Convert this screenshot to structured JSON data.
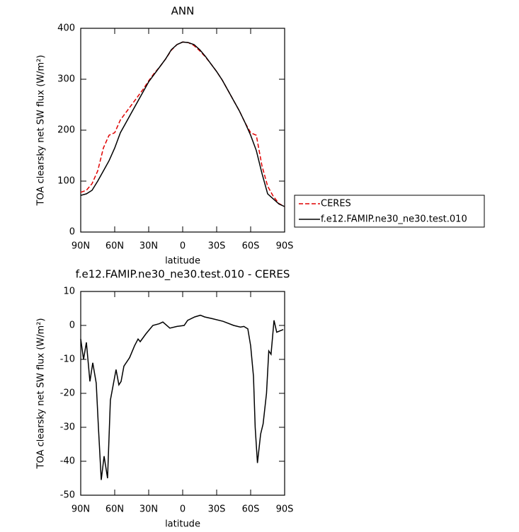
{
  "chart_data": [
    {
      "type": "line",
      "title": "ANN",
      "xlabel": "latitude",
      "ylabel": "TOA clearsky net SW flux (W/m²)",
      "x": [
        90,
        85,
        80,
        75,
        70,
        65,
        60,
        55,
        50,
        45,
        40,
        35,
        30,
        25,
        20,
        15,
        10,
        5,
        0,
        -5,
        -10,
        -15,
        -20,
        -25,
        -30,
        -35,
        -40,
        -45,
        -50,
        -55,
        -60,
        -65,
        -70,
        -75,
        -80,
        -85,
        -90
      ],
      "series": [
        {
          "name": "CERES",
          "color": "#e00000",
          "dash": true,
          "values": [
            78,
            82,
            95,
            120,
            165,
            190,
            195,
            220,
            235,
            250,
            265,
            280,
            297,
            312,
            325,
            340,
            357,
            368,
            373,
            372,
            366,
            356,
            344,
            330,
            315,
            298,
            278,
            258,
            238,
            215,
            195,
            190,
            130,
            90,
            70,
            56,
            50
          ]
        },
        {
          "name": "f.e12.FAMIP.ne30_ne30.test.010",
          "color": "#000000",
          "dash": false,
          "values": [
            72,
            75,
            82,
            100,
            120,
            140,
            165,
            195,
            215,
            235,
            255,
            275,
            295,
            310,
            325,
            340,
            358,
            368,
            373,
            372,
            368,
            358,
            345,
            330,
            315,
            298,
            278,
            258,
            238,
            215,
            190,
            160,
            115,
            75,
            65,
            55,
            50
          ]
        }
      ],
      "xlim": [
        90,
        -90
      ],
      "xticks": [
        {
          "value": 90,
          "label": "90N"
        },
        {
          "value": 60,
          "label": "60N"
        },
        {
          "value": 30,
          "label": "30N"
        },
        0,
        {
          "value": -30,
          "label": "30S"
        },
        {
          "value": -60,
          "label": "60S"
        },
        {
          "value": -90,
          "label": "90S"
        }
      ],
      "ylim": [
        0,
        400
      ],
      "yticks": [
        0,
        100,
        200,
        300,
        400
      ]
    },
    {
      "type": "line",
      "title": "f.e12.FAMIP.ne30_ne30.test.010 - CERES",
      "xlabel": "latitude",
      "ylabel": "TOA clearsky net SW flux (W/m²)",
      "x": [
        90,
        87.5,
        85,
        81.9,
        79.4,
        76.3,
        74.4,
        71.9,
        69.4,
        66.3,
        63.8,
        58.8,
        56.3,
        54.4,
        51.9,
        46.9,
        42.5,
        39.4,
        37.5,
        32.5,
        26.3,
        20.6,
        17.5,
        11.3,
        5,
        -1.3,
        -4.4,
        -10.6,
        -15.6,
        -19.4,
        -26,
        -35.6,
        -45,
        -51,
        -54,
        -57.5,
        -60,
        -62.5,
        -64,
        -66,
        -68.8,
        -71,
        -74,
        -76,
        -78,
        -80.6,
        -83,
        -88.8
      ],
      "series": [
        {
          "color": "#000000",
          "dash": false,
          "values": [
            -4,
            -10,
            -5,
            -16.5,
            -11,
            -17,
            -30,
            -45.5,
            -38.5,
            -45,
            -22,
            -13,
            -17.5,
            -16.5,
            -12,
            -9.5,
            -6,
            -4,
            -4.8,
            -2.5,
            0,
            0.5,
            1,
            -0.8,
            -0.3,
            0,
            1.5,
            2.5,
            3,
            2.5,
            2,
            1.2,
            0,
            -0.5,
            -0.3,
            -1,
            -6,
            -15,
            -30,
            -40.5,
            -32,
            -29,
            -20,
            -7.5,
            -8.5,
            1.5,
            -2,
            -1.2
          ]
        }
      ],
      "xlim": [
        90,
        -90
      ],
      "xticks": [
        {
          "value": 90,
          "label": "90N"
        },
        {
          "value": 60,
          "label": "60N"
        },
        {
          "value": 30,
          "label": "30N"
        },
        0,
        {
          "value": -30,
          "label": "30S"
        },
        {
          "value": -60,
          "label": "60S"
        },
        {
          "value": -90,
          "label": "90S"
        }
      ],
      "ylim": [
        -50,
        10
      ],
      "yticks": [
        -50,
        -40,
        -30,
        -20,
        -10,
        0,
        10
      ]
    }
  ]
}
